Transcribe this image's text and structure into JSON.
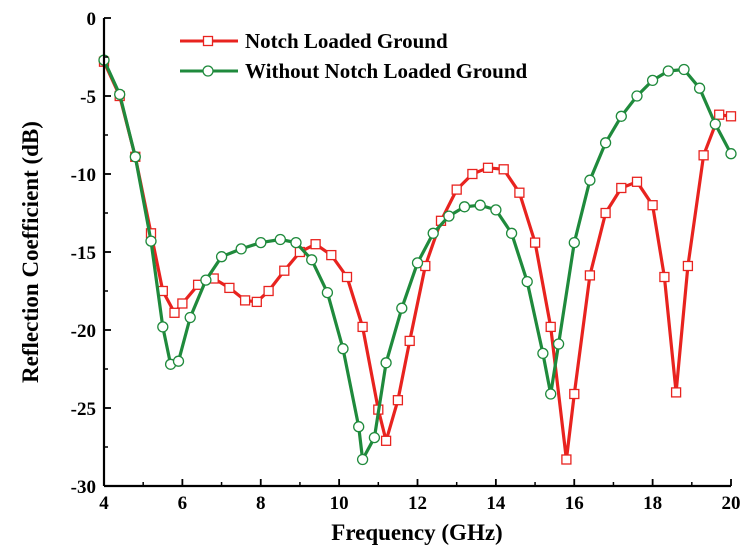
{
  "chart_data": {
    "type": "line",
    "xlabel": "Frequency (GHz)",
    "ylabel": "Reflection Coefficient (dB)",
    "xlim": [
      4,
      20
    ],
    "ylim": [
      -30,
      0
    ],
    "xticks": [
      "4",
      "6",
      "8",
      "10",
      "12",
      "14",
      "16",
      "18",
      "20"
    ],
    "yticks": [
      "0",
      "-5",
      "-10",
      "-15",
      "-20",
      "-25",
      "-30"
    ],
    "grid": false,
    "legend_position": "top-left",
    "series": [
      {
        "name": "Notch Loaded Ground",
        "color": "#e8231f",
        "marker": "square",
        "points": [
          [
            4.0,
            -2.8
          ],
          [
            4.4,
            -5.0
          ],
          [
            4.8,
            -8.9
          ],
          [
            5.2,
            -13.8
          ],
          [
            5.5,
            -17.5
          ],
          [
            5.8,
            -18.9
          ],
          [
            6.0,
            -18.3
          ],
          [
            6.4,
            -17.1
          ],
          [
            6.8,
            -16.7
          ],
          [
            7.2,
            -17.3
          ],
          [
            7.6,
            -18.1
          ],
          [
            7.9,
            -18.2
          ],
          [
            8.2,
            -17.5
          ],
          [
            8.6,
            -16.2
          ],
          [
            9.0,
            -15.0
          ],
          [
            9.4,
            -14.5
          ],
          [
            9.8,
            -15.2
          ],
          [
            10.2,
            -16.6
          ],
          [
            10.6,
            -19.8
          ],
          [
            11.0,
            -25.1
          ],
          [
            11.2,
            -27.1
          ],
          [
            11.5,
            -24.5
          ],
          [
            11.8,
            -20.7
          ],
          [
            12.2,
            -15.9
          ],
          [
            12.6,
            -13.0
          ],
          [
            13.0,
            -11.0
          ],
          [
            13.4,
            -10.0
          ],
          [
            13.8,
            -9.6
          ],
          [
            14.2,
            -9.7
          ],
          [
            14.6,
            -11.2
          ],
          [
            15.0,
            -14.4
          ],
          [
            15.4,
            -19.8
          ],
          [
            15.8,
            -28.3
          ],
          [
            16.0,
            -24.1
          ],
          [
            16.4,
            -16.5
          ],
          [
            16.8,
            -12.5
          ],
          [
            17.2,
            -10.9
          ],
          [
            17.6,
            -10.5
          ],
          [
            18.0,
            -12.0
          ],
          [
            18.3,
            -16.6
          ],
          [
            18.6,
            -24.0
          ],
          [
            18.9,
            -15.9
          ],
          [
            19.3,
            -8.8
          ],
          [
            19.7,
            -6.2
          ],
          [
            20.0,
            -6.3
          ]
        ]
      },
      {
        "name": "Without Notch Loaded Ground",
        "color": "#1f8a3c",
        "marker": "circle",
        "points": [
          [
            4.0,
            -2.7
          ],
          [
            4.4,
            -4.9
          ],
          [
            4.8,
            -8.9
          ],
          [
            5.2,
            -14.3
          ],
          [
            5.5,
            -19.8
          ],
          [
            5.7,
            -22.2
          ],
          [
            5.9,
            -22.0
          ],
          [
            6.2,
            -19.2
          ],
          [
            6.6,
            -16.8
          ],
          [
            7.0,
            -15.3
          ],
          [
            7.5,
            -14.8
          ],
          [
            8.0,
            -14.4
          ],
          [
            8.5,
            -14.2
          ],
          [
            8.9,
            -14.4
          ],
          [
            9.3,
            -15.5
          ],
          [
            9.7,
            -17.6
          ],
          [
            10.1,
            -21.2
          ],
          [
            10.5,
            -26.2
          ],
          [
            10.6,
            -28.3
          ],
          [
            10.9,
            -26.9
          ],
          [
            11.2,
            -22.1
          ],
          [
            11.6,
            -18.6
          ],
          [
            12.0,
            -15.7
          ],
          [
            12.4,
            -13.8
          ],
          [
            12.8,
            -12.7
          ],
          [
            13.2,
            -12.1
          ],
          [
            13.6,
            -12.0
          ],
          [
            14.0,
            -12.3
          ],
          [
            14.4,
            -13.8
          ],
          [
            14.8,
            -16.9
          ],
          [
            15.2,
            -21.5
          ],
          [
            15.4,
            -24.1
          ],
          [
            15.6,
            -20.9
          ],
          [
            16.0,
            -14.4
          ],
          [
            16.4,
            -10.4
          ],
          [
            16.8,
            -8.0
          ],
          [
            17.2,
            -6.3
          ],
          [
            17.6,
            -5.0
          ],
          [
            18.0,
            -4.0
          ],
          [
            18.4,
            -3.4
          ],
          [
            18.8,
            -3.3
          ],
          [
            19.2,
            -4.5
          ],
          [
            19.6,
            -6.8
          ],
          [
            20.0,
            -8.7
          ]
        ]
      }
    ]
  }
}
